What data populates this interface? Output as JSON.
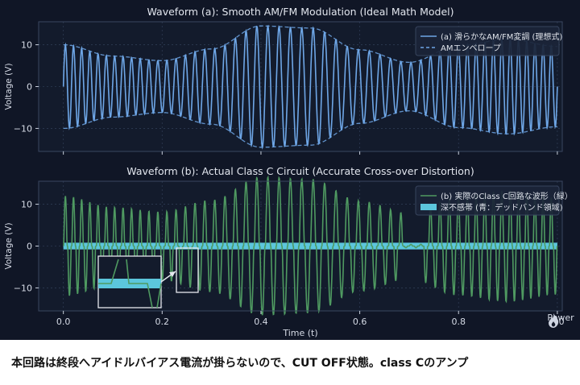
{
  "chart_data": [
    {
      "type": "line",
      "title": "Waveform (a): Smooth AM/FM Modulation (Ideal Math Model)",
      "xlabel": "",
      "ylabel": "Voltage (V)",
      "xlim": [
        -0.05,
        1.01
      ],
      "ylim": [
        -15.5,
        15.5
      ],
      "xticks": [
        0.0,
        0.2,
        0.4,
        0.6,
        0.8,
        1.0
      ],
      "yticks": [
        -10,
        0,
        10
      ],
      "grid": true,
      "legend_position": "top-right",
      "series": [
        {
          "name": "(a) 滑らかなAM/FM変調 (理想式)",
          "color": "#6ea6e6",
          "style": "solid",
          "x": [
            0.0,
            0.1,
            0.2,
            0.3,
            0.4,
            0.5,
            0.6,
            0.7,
            0.8,
            0.9,
            1.0
          ],
          "y": [
            0,
            9.5,
            -7.8,
            12.5,
            -14.9,
            11,
            -5.8,
            5.9,
            -11.5,
            9.5,
            0
          ]
        },
        {
          "name": "AMエンベロープ",
          "color": "#6ea6e6",
          "style": "dashed",
          "x": [
            0.0,
            0.1,
            0.2,
            0.3,
            0.4,
            0.5,
            0.6,
            0.7,
            0.8,
            0.9,
            1.0
          ],
          "y": [
            10,
            7.3,
            6.2,
            9,
            14.5,
            14,
            8.8,
            5.8,
            9.8,
            11.3,
            9.6
          ]
        }
      ]
    },
    {
      "type": "line",
      "title": "Waveform (b): Actual Class C Circuit (Accurate Cross-over Distortion)",
      "xlabel": "Time (t)",
      "ylabel": "Voltage (V)",
      "xlim": [
        -0.05,
        1.01
      ],
      "ylim": [
        -15.5,
        15.5
      ],
      "xticks": [
        0.0,
        0.2,
        0.4,
        0.6,
        0.8,
        1.0
      ],
      "yticks": [
        -10,
        0,
        10
      ],
      "grid": true,
      "legend_position": "top-right",
      "series": [
        {
          "name": "(b) 実際のClass C回路な波形（緑）",
          "color": "#4f9a61",
          "style": "solid",
          "x": [
            0.0,
            0.1,
            0.2,
            0.3,
            0.4,
            0.5,
            0.6,
            0.7,
            0.8,
            0.9,
            1.0
          ],
          "y": [
            0,
            8.6,
            -7.2,
            12.6,
            -14.5,
            12.6,
            -7.5,
            0,
            -10.5,
            10.7,
            0
          ]
        },
        {
          "name": "深不感帯 (青：デッドバンド領域)",
          "color": "#5cc6dc",
          "type": "band",
          "y_range": [
            -0.8,
            0.8
          ]
        }
      ]
    }
  ],
  "tick_labels": {
    "x": [
      "0.0",
      "0.2",
      "0.4",
      "0.6",
      "0.8",
      "1.0"
    ],
    "y": [
      "10",
      "0",
      "−10"
    ]
  },
  "watermark": {
    "text": "Power",
    "icon": "flame-logo-icon"
  },
  "caption": "本回路は終段へアイドルバイアス電流が掛らないので、CUT OFF状態。class Cのアンプ"
}
